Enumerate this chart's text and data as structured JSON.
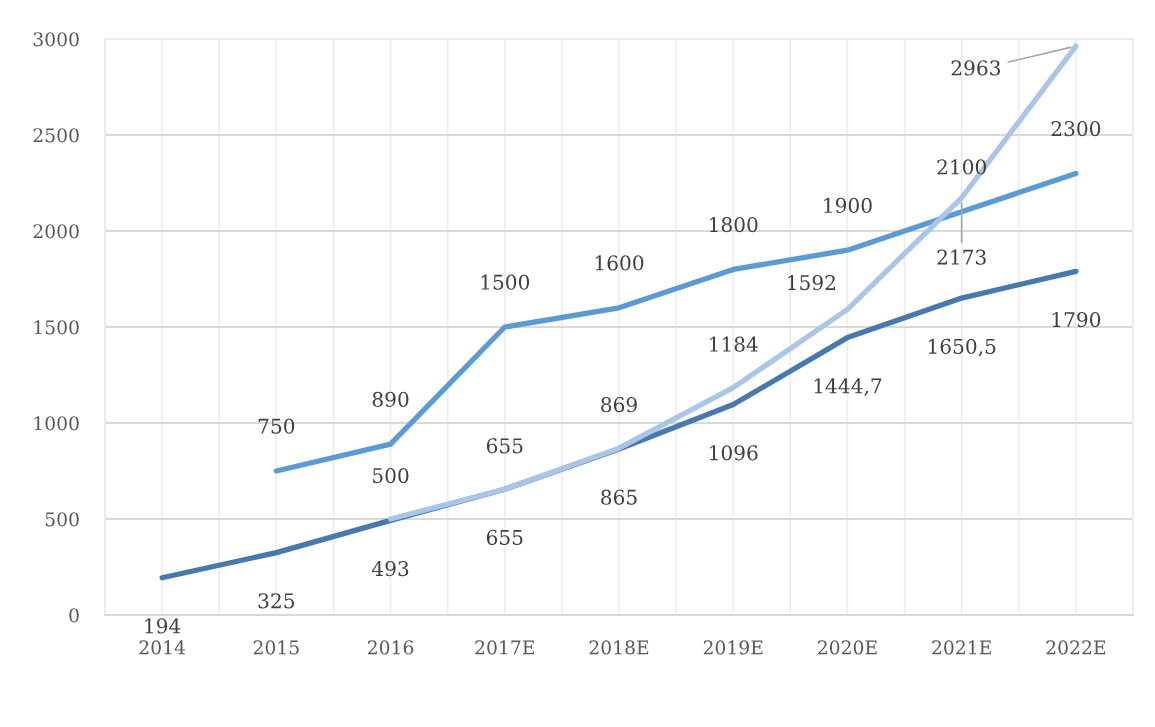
{
  "chart_data": {
    "type": "line",
    "categories": [
      "2014",
      "2015",
      "2016",
      "2017E",
      "2018E",
      "2019E",
      "2020E",
      "2021E",
      "2022E"
    ],
    "series": [
      {
        "color": "#4679ad",
        "values": [
          194,
          325,
          493,
          655,
          865,
          1096,
          1444.7,
          1650.5,
          1790
        ],
        "value_labels": [
          "194",
          "325",
          "493",
          "655",
          "865",
          "1096",
          "1444,7",
          "1650,5",
          "1790"
        ]
      },
      {
        "color": "#5b9bd5",
        "values": [
          null,
          750,
          890,
          1500,
          1600,
          1800,
          1900,
          2100,
          2300
        ],
        "value_labels": [
          null,
          "750",
          "890",
          "1500",
          "1600",
          "1800",
          "1900",
          "2100",
          "2300"
        ]
      },
      {
        "color": "#a9c5e8",
        "values": [
          null,
          null,
          500,
          655,
          869,
          1184,
          1592,
          2173,
          2963
        ],
        "value_labels": [
          null,
          null,
          "500",
          "655",
          "869",
          "1184",
          "1592",
          "2173",
          "2963"
        ]
      }
    ],
    "ylim": [
      0,
      3000
    ],
    "yticks": [
      0,
      500,
      1000,
      1500,
      2000,
      2500,
      3000
    ],
    "grid": true,
    "marker": "none",
    "line_style": "solid"
  }
}
